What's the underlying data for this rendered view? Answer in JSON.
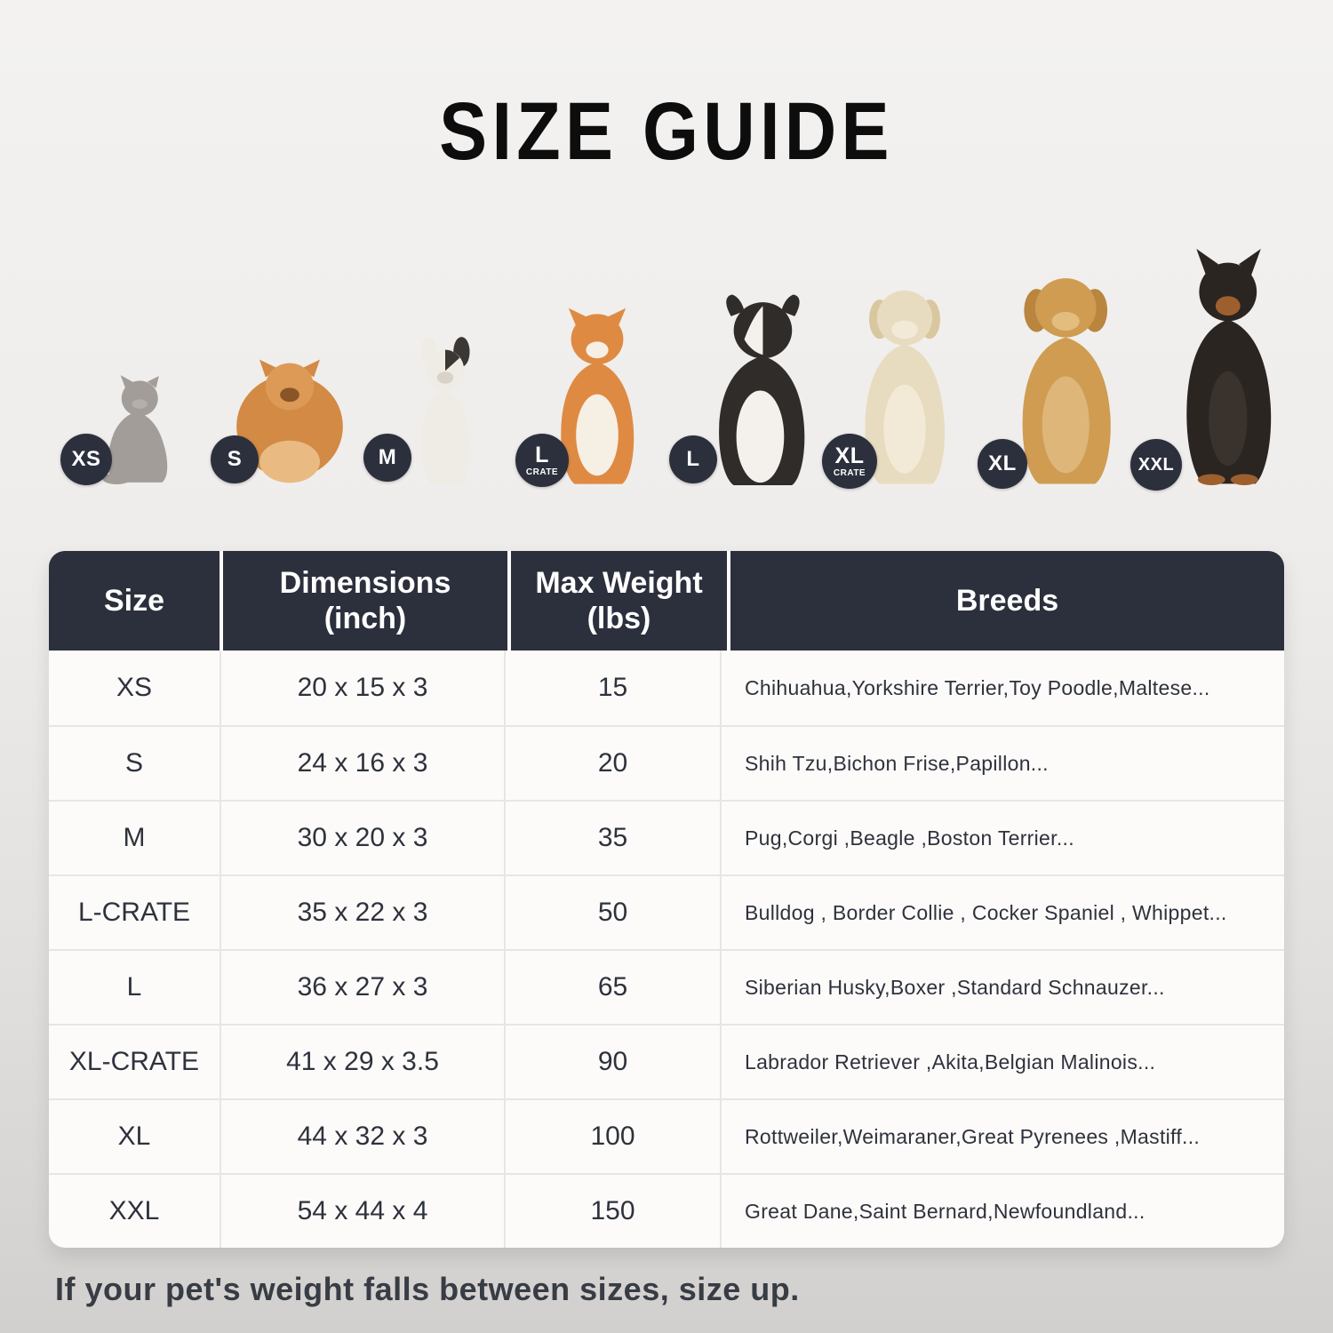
{
  "page": {
    "title": "SIZE GUIDE",
    "footer_note": "If your pet's weight falls between sizes, size up."
  },
  "colors": {
    "header_bg": "#2c303d",
    "badge_bg": "#2c303d",
    "table_bg": "#fdfbfa",
    "text_dark": "#2e323c"
  },
  "size_row": [
    {
      "animal": "cat",
      "badge": "XS",
      "badge_sub": ""
    },
    {
      "animal": "pomeranian",
      "badge": "S",
      "badge_sub": ""
    },
    {
      "animal": "french-bulldog",
      "badge": "M",
      "badge_sub": ""
    },
    {
      "animal": "shiba-inu",
      "badge": "L",
      "badge_sub": "CRATE"
    },
    {
      "animal": "border-collie",
      "badge": "L",
      "badge_sub": ""
    },
    {
      "animal": "labrador-retriever",
      "badge": "XL",
      "badge_sub": "CRATE"
    },
    {
      "animal": "golden-retriever",
      "badge": "XL",
      "badge_sub": ""
    },
    {
      "animal": "doberman",
      "badge": "XXL",
      "badge_sub": ""
    }
  ],
  "table": {
    "headers": [
      {
        "label": "Size",
        "sub": ""
      },
      {
        "label": "Dimensions",
        "sub": "(inch)"
      },
      {
        "label": "Max Weight",
        "sub": "(lbs)"
      },
      {
        "label": "Breeds",
        "sub": ""
      }
    ],
    "rows": [
      {
        "size": "XS",
        "dimensions": "20 x 15 x 3",
        "max_weight": "15",
        "breeds": "Chihuahua,Yorkshire Terrier,Toy Poodle,Maltese..."
      },
      {
        "size": "S",
        "dimensions": "24 x 16 x 3",
        "max_weight": "20",
        "breeds": "Shih Tzu,Bichon Frise,Papillon..."
      },
      {
        "size": "M",
        "dimensions": "30 x 20 x 3",
        "max_weight": "35",
        "breeds": "Pug,Corgi ,Beagle ,Boston Terrier..."
      },
      {
        "size": "L-CRATE",
        "dimensions": "35 x 22 x 3",
        "max_weight": "50",
        "breeds": "Bulldog , Border Collie , Cocker Spaniel , Whippet..."
      },
      {
        "size": "L",
        "dimensions": "36 x 27 x 3",
        "max_weight": "65",
        "breeds": "Siberian Husky,Boxer ,Standard Schnauzer..."
      },
      {
        "size": "XL-CRATE",
        "dimensions": "41 x 29 x 3.5",
        "max_weight": "90",
        "breeds": "Labrador Retriever ,Akita,Belgian Malinois..."
      },
      {
        "size": "XL",
        "dimensions": "44 x 32 x 3",
        "max_weight": "100",
        "breeds": "Rottweiler,Weimaraner,Great Pyrenees ,Mastiff..."
      },
      {
        "size": "XXL",
        "dimensions": "54 x 44 x 4",
        "max_weight": "150",
        "breeds": "Great Dane,Saint Bernard,Newfoundland..."
      }
    ]
  }
}
